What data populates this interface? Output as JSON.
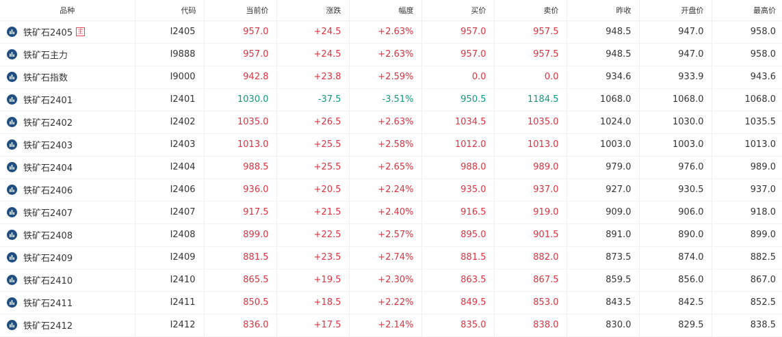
{
  "headers": {
    "name": "品种",
    "code": "代码",
    "price": "当前价",
    "change": "涨跌",
    "pct": "幅度",
    "bid": "买价",
    "ask": "卖价",
    "prev_close": "昨收",
    "open": "开盘价",
    "high": "最高价"
  },
  "colors": {
    "up": "#e0303f",
    "down": "#0b9a7e",
    "icon": "#1f4f82"
  },
  "rows": [
    {
      "name": "铁矿石2405",
      "badge": "主",
      "code": "I2405",
      "price": "957.0",
      "change": "+24.5",
      "pct": "+2.63%",
      "bid": "957.0",
      "ask": "957.5",
      "prev_close": "948.5",
      "open": "947.0",
      "high": "958.0",
      "dir": [
        "up",
        "up",
        "up",
        "up",
        "up"
      ]
    },
    {
      "name": "铁矿石主力",
      "badge": "",
      "code": "I9888",
      "price": "957.0",
      "change": "+24.5",
      "pct": "+2.63%",
      "bid": "957.0",
      "ask": "957.5",
      "prev_close": "948.5",
      "open": "947.0",
      "high": "958.0",
      "dir": [
        "up",
        "up",
        "up",
        "up",
        "up"
      ]
    },
    {
      "name": "铁矿石指数",
      "badge": "",
      "code": "I9000",
      "price": "942.8",
      "change": "+23.8",
      "pct": "+2.59%",
      "bid": "0.0",
      "ask": "0.0",
      "prev_close": "934.6",
      "open": "933.9",
      "high": "943.6",
      "dir": [
        "up",
        "up",
        "up",
        "up",
        "up"
      ]
    },
    {
      "name": "铁矿石2401",
      "badge": "",
      "code": "I2401",
      "price": "1030.0",
      "change": "-37.5",
      "pct": "-3.51%",
      "bid": "950.5",
      "ask": "1184.5",
      "prev_close": "1068.0",
      "open": "1068.0",
      "high": "1068.0",
      "dir": [
        "down",
        "down",
        "down",
        "down",
        "down"
      ]
    },
    {
      "name": "铁矿石2402",
      "badge": "",
      "code": "I2402",
      "price": "1035.0",
      "change": "+26.5",
      "pct": "+2.63%",
      "bid": "1034.5",
      "ask": "1035.0",
      "prev_close": "1024.0",
      "open": "1030.0",
      "high": "1035.5",
      "dir": [
        "up",
        "up",
        "up",
        "up",
        "up"
      ]
    },
    {
      "name": "铁矿石2403",
      "badge": "",
      "code": "I2403",
      "price": "1013.0",
      "change": "+25.5",
      "pct": "+2.58%",
      "bid": "1012.0",
      "ask": "1013.0",
      "prev_close": "1003.0",
      "open": "1003.0",
      "high": "1013.0",
      "dir": [
        "up",
        "up",
        "up",
        "up",
        "up"
      ]
    },
    {
      "name": "铁矿石2404",
      "badge": "",
      "code": "I2404",
      "price": "988.5",
      "change": "+25.5",
      "pct": "+2.65%",
      "bid": "988.0",
      "ask": "989.0",
      "prev_close": "979.0",
      "open": "976.0",
      "high": "989.0",
      "dir": [
        "up",
        "up",
        "up",
        "up",
        "up"
      ]
    },
    {
      "name": "铁矿石2406",
      "badge": "",
      "code": "I2406",
      "price": "936.0",
      "change": "+20.5",
      "pct": "+2.24%",
      "bid": "935.0",
      "ask": "937.0",
      "prev_close": "927.0",
      "open": "930.5",
      "high": "937.0",
      "dir": [
        "up",
        "up",
        "up",
        "up",
        "up"
      ]
    },
    {
      "name": "铁矿石2407",
      "badge": "",
      "code": "I2407",
      "price": "917.5",
      "change": "+21.5",
      "pct": "+2.40%",
      "bid": "916.5",
      "ask": "919.0",
      "prev_close": "909.0",
      "open": "906.0",
      "high": "918.0",
      "dir": [
        "up",
        "up",
        "up",
        "up",
        "up"
      ]
    },
    {
      "name": "铁矿石2408",
      "badge": "",
      "code": "I2408",
      "price": "899.0",
      "change": "+22.5",
      "pct": "+2.57%",
      "bid": "895.0",
      "ask": "901.5",
      "prev_close": "891.0",
      "open": "890.0",
      "high": "899.0",
      "dir": [
        "up",
        "up",
        "up",
        "up",
        "up"
      ]
    },
    {
      "name": "铁矿石2409",
      "badge": "",
      "code": "I2409",
      "price": "881.5",
      "change": "+23.5",
      "pct": "+2.74%",
      "bid": "881.5",
      "ask": "882.0",
      "prev_close": "873.5",
      "open": "874.0",
      "high": "882.5",
      "dir": [
        "up",
        "up",
        "up",
        "up",
        "up"
      ]
    },
    {
      "name": "铁矿石2410",
      "badge": "",
      "code": "I2410",
      "price": "865.5",
      "change": "+19.5",
      "pct": "+2.30%",
      "bid": "863.5",
      "ask": "867.5",
      "prev_close": "859.5",
      "open": "856.0",
      "high": "867.0",
      "dir": [
        "up",
        "up",
        "up",
        "up",
        "up"
      ]
    },
    {
      "name": "铁矿石2411",
      "badge": "",
      "code": "I2411",
      "price": "850.5",
      "change": "+18.5",
      "pct": "+2.22%",
      "bid": "849.5",
      "ask": "853.0",
      "prev_close": "843.5",
      "open": "842.5",
      "high": "852.5",
      "dir": [
        "up",
        "up",
        "up",
        "up",
        "up"
      ]
    },
    {
      "name": "铁矿石2412",
      "badge": "",
      "code": "I2412",
      "price": "836.0",
      "change": "+17.5",
      "pct": "+2.14%",
      "bid": "835.0",
      "ask": "838.0",
      "prev_close": "830.0",
      "open": "829.5",
      "high": "838.5",
      "dir": [
        "up",
        "up",
        "up",
        "up",
        "up"
      ]
    }
  ]
}
